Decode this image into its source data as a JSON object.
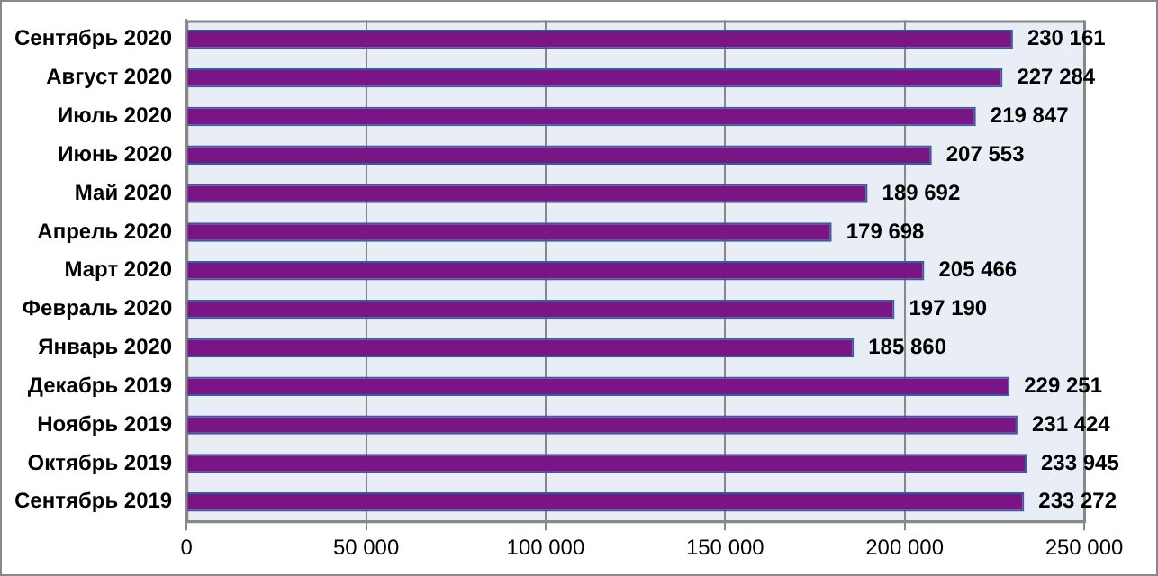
{
  "chart_data": {
    "type": "bar",
    "orientation": "horizontal",
    "categories": [
      "Сентябрь 2020",
      "Август 2020",
      "Июль 2020",
      "Июнь 2020",
      "Май 2020",
      "Апрель 2020",
      "Март 2020",
      "Февраль 2020",
      "Январь 2020",
      "Декабрь 2019",
      "Ноябрь 2019",
      "Октябрь 2019",
      "Сентябрь 2019"
    ],
    "values": [
      230161,
      227284,
      219847,
      207553,
      189692,
      179698,
      205466,
      197190,
      185860,
      229251,
      231424,
      233945,
      233272
    ],
    "value_labels": [
      "230 161",
      "227 284",
      "219 847",
      "207 553",
      "189 692",
      "179 698",
      "205 466",
      "197 190",
      "185 860",
      "229 251",
      "231 424",
      "233 945",
      "233 272"
    ],
    "color": "#7a1585",
    "xlim": [
      0,
      250000
    ],
    "xticks": [
      0,
      {
        "value": 50000,
        "label": "50 000"
      },
      {
        "value": 100000,
        "label": "100 000"
      },
      {
        "value": 150000,
        "label": "150 000"
      },
      {
        "value": 200000,
        "label": "200 000"
      },
      {
        "value": 250000,
        "label": "250 000"
      }
    ],
    "grid": "x"
  }
}
